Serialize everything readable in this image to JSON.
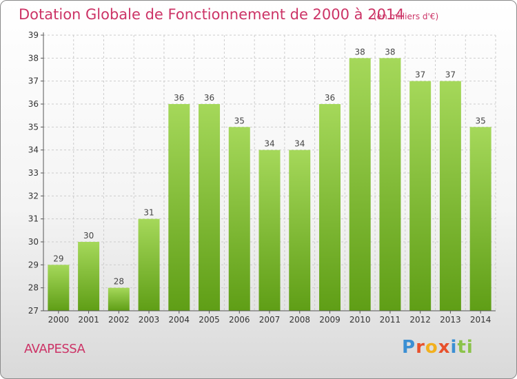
{
  "title": "Dotation Globale de Fonctionnement de 2000 à 2014",
  "subtitle": "(en milliers d'€)",
  "commune": "AVAPESSA",
  "logo": {
    "text": "Proxiti",
    "letters": [
      "P",
      "r",
      "o",
      "x",
      "i",
      "ti"
    ]
  },
  "colors": {
    "title": "#cc3366",
    "bar_light": "#a5d85a",
    "bar_dark": "#5f9e16",
    "axis": "#555555",
    "grid": "#cccccc"
  },
  "chart_data": {
    "type": "bar",
    "categories": [
      "2000",
      "2001",
      "2002",
      "2003",
      "2004",
      "2005",
      "2006",
      "2007",
      "2008",
      "2009",
      "2010",
      "2011",
      "2012",
      "2013",
      "2014"
    ],
    "values": [
      29,
      30,
      28,
      31,
      36,
      36,
      35,
      34,
      34,
      36,
      38,
      38,
      37,
      37,
      35
    ],
    "title": "Dotation Globale de Fonctionnement de 2000 à 2014",
    "subtitle": "(en milliers d'€)",
    "xlabel": "",
    "ylabel": "",
    "ylim": [
      27,
      39
    ],
    "yticks": [
      27,
      28,
      29,
      30,
      31,
      32,
      33,
      34,
      35,
      36,
      37,
      38,
      39
    ],
    "grid": true,
    "data_labels": true
  }
}
